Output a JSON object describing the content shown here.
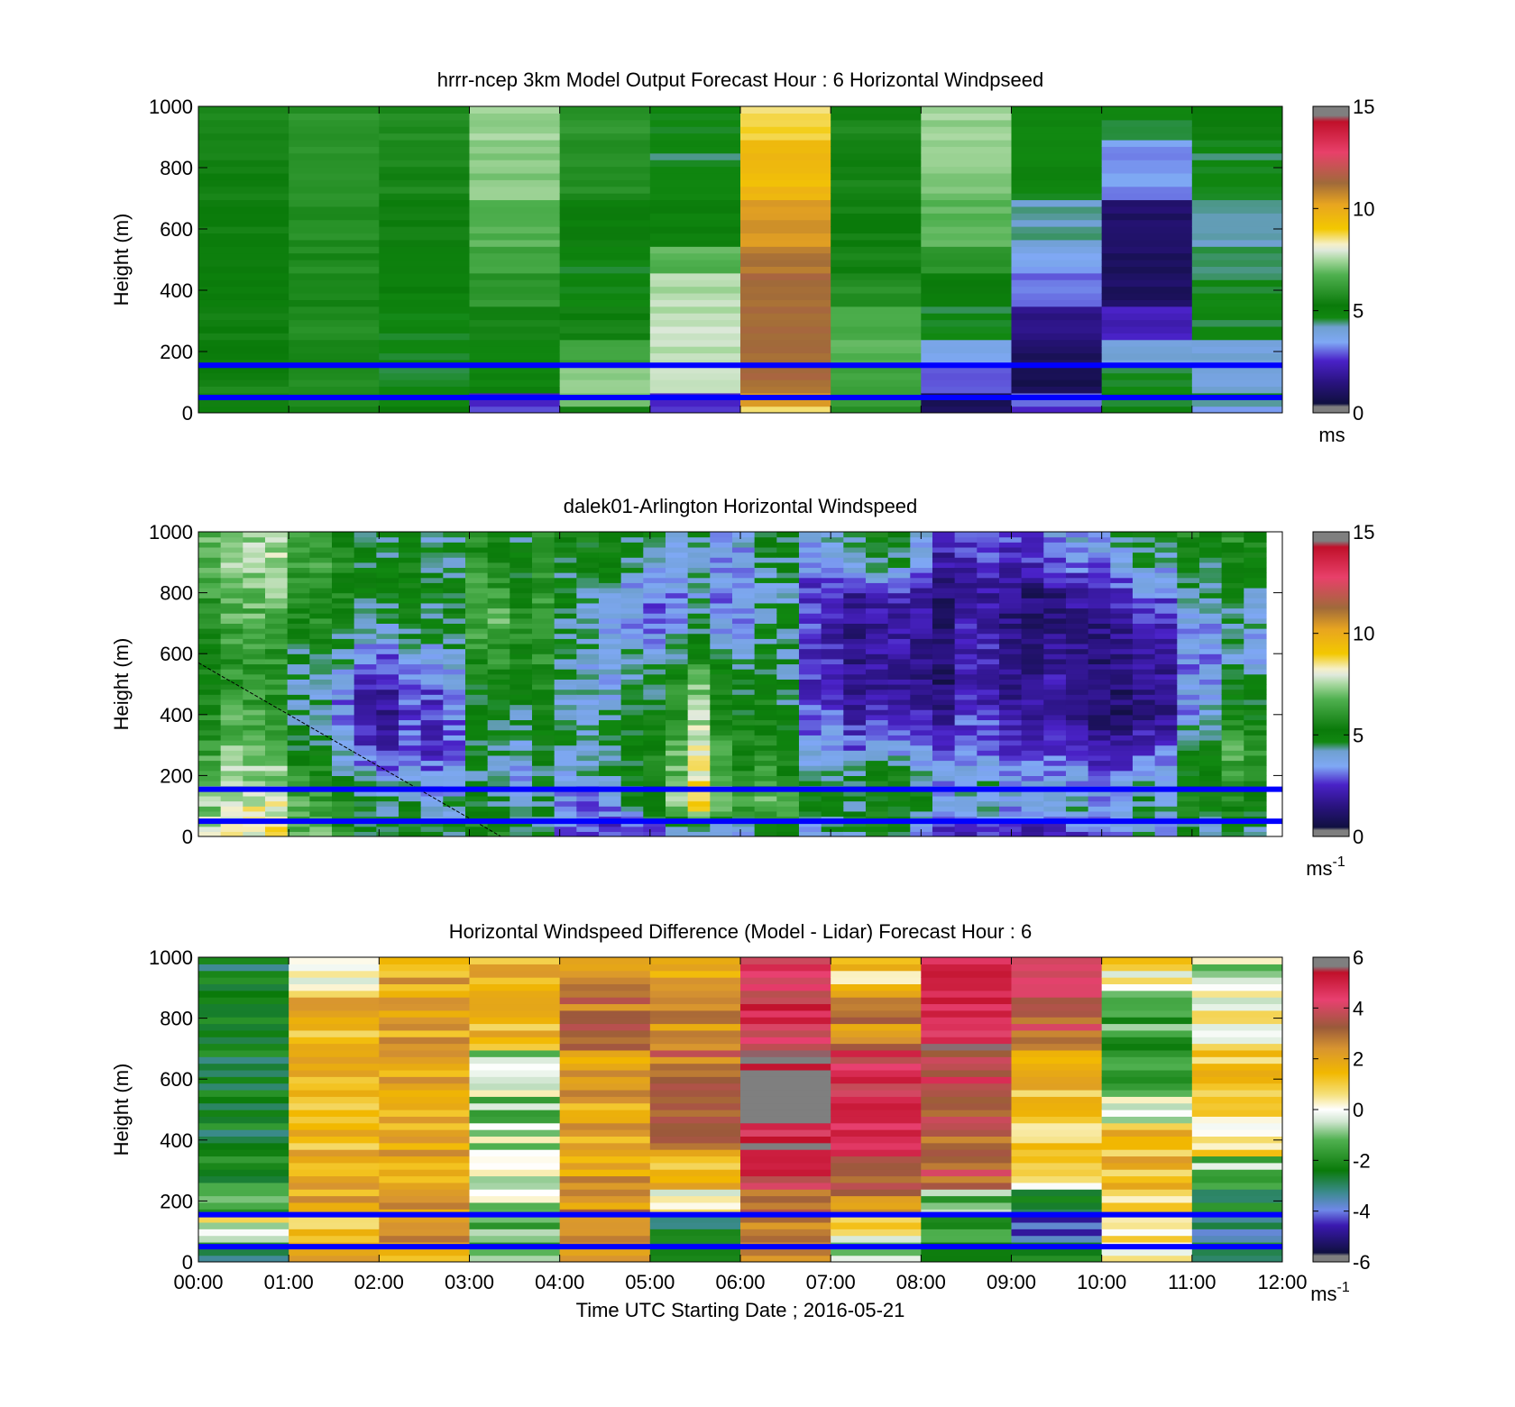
{
  "figure": {
    "xlabel": "Time UTC  Starting Date ; 2016-05-21",
    "xticks": [
      "00:00",
      "01:00",
      "02:00",
      "03:00",
      "04:00",
      "05:00",
      "06:00",
      "07:00",
      "08:00",
      "09:00",
      "10:00",
      "11:00",
      "12:00"
    ]
  },
  "colors": {
    "wind_scale": [
      [
        0.0,
        "#7f7f7f"
      ],
      [
        0.02,
        "#7f7f7f"
      ],
      [
        0.03,
        "#101040"
      ],
      [
        0.1,
        "#2a1380"
      ],
      [
        0.17,
        "#4a22c8"
      ],
      [
        0.23,
        "#7fa8f5"
      ],
      [
        0.28,
        "#6fa0d0"
      ],
      [
        0.31,
        "#118811"
      ],
      [
        0.35,
        "#0a7a0a"
      ],
      [
        0.45,
        "#4fb04f"
      ],
      [
        0.5,
        "#a8d8a0"
      ],
      [
        0.53,
        "#dfe9dc"
      ],
      [
        0.55,
        "#f5f0c8"
      ],
      [
        0.6,
        "#f3c800"
      ],
      [
        0.68,
        "#e8a520"
      ],
      [
        0.75,
        "#a06a3a"
      ],
      [
        0.85,
        "#e8406a"
      ],
      [
        0.95,
        "#c0102a"
      ],
      [
        0.97,
        "#7f7f7f"
      ],
      [
        1.0,
        "#7f7f7f"
      ]
    ],
    "diff_scale": [
      [
        0.0,
        "#7f7f7f"
      ],
      [
        0.02,
        "#7f7f7f"
      ],
      [
        0.03,
        "#101040"
      ],
      [
        0.12,
        "#3a18b0"
      ],
      [
        0.17,
        "#6f88e8"
      ],
      [
        0.23,
        "#3a8a8a"
      ],
      [
        0.3,
        "#0a7a0a"
      ],
      [
        0.4,
        "#4fb04f"
      ],
      [
        0.46,
        "#cfe5cf"
      ],
      [
        0.5,
        "#ffffff"
      ],
      [
        0.55,
        "#f5e07a"
      ],
      [
        0.62,
        "#f2b800"
      ],
      [
        0.7,
        "#d89530"
      ],
      [
        0.77,
        "#9a5a3a"
      ],
      [
        0.86,
        "#e84070"
      ],
      [
        0.95,
        "#c0102a"
      ],
      [
        0.97,
        "#7f7f7f"
      ],
      [
        1.0,
        "#7f7f7f"
      ]
    ],
    "guide_line": "#0000ff"
  },
  "chart_data": [
    {
      "type": "heatmap",
      "title": "hrrr-ncep 3km Model Output   Forecast Hour : 6 Horizontal Windpseed",
      "ylabel": "Height (m)",
      "ylim": [
        0,
        1000
      ],
      "yticks": [
        "0",
        "200",
        "400",
        "600",
        "800",
        "1000"
      ],
      "xlim": [
        0,
        12
      ],
      "colorbar": {
        "vmin": 0,
        "vmax": 15,
        "ticks": [
          "0",
          "5",
          "10",
          "15"
        ],
        "unit_base": "ms",
        "unit_exp": ""
      },
      "guide_lines": [
        50,
        155
      ],
      "blocks": {
        "x_edges": [
          0,
          1,
          2,
          3,
          4,
          5,
          6,
          7,
          8,
          9,
          10,
          11,
          12
        ],
        "y_edges": [
          0,
          30,
          60,
          150,
          250,
          350,
          450,
          550,
          700,
          900,
          1000
        ],
        "values": [
          [
            5.2,
            5.5,
            5.4,
            2.8,
            5.6,
            2.7,
            8.5,
            5.6,
            1.0,
            2.6,
            5.0,
            3.5
          ],
          [
            5.5,
            5.6,
            4.8,
            2.5,
            7.0,
            2.6,
            10.5,
            6.0,
            0.8,
            3.2,
            4.8,
            4.5
          ],
          [
            5.5,
            5.7,
            4.6,
            4.8,
            7.3,
            7.6,
            11.2,
            6.4,
            3.0,
            0.8,
            4.6,
            4.0
          ],
          [
            5.3,
            5.6,
            4.8,
            5.0,
            6.3,
            7.7,
            11.3,
            6.7,
            3.6,
            1.0,
            4.0,
            4.0
          ],
          [
            5.3,
            5.7,
            4.8,
            5.4,
            5.4,
            7.7,
            11.3,
            6.6,
            4.6,
            1.5,
            2.3,
            4.6
          ],
          [
            5.2,
            5.6,
            5.0,
            6.0,
            4.8,
            7.6,
            11.3,
            5.8,
            5.2,
            3.0,
            1.0,
            4.6
          ],
          [
            5.2,
            5.7,
            5.2,
            6.3,
            4.8,
            6.8,
            11.0,
            5.5,
            6.0,
            3.6,
            1.0,
            4.6
          ],
          [
            5.3,
            5.8,
            5.3,
            6.8,
            5.2,
            5.0,
            10.5,
            5.4,
            6.8,
            4.2,
            1.1,
            4.2
          ],
          [
            5.4,
            5.9,
            5.6,
            7.2,
            5.8,
            4.6,
            9.5,
            5.5,
            7.2,
            4.8,
            3.3,
            4.6
          ],
          [
            5.5,
            6.0,
            5.8,
            7.4,
            6.0,
            4.8,
            8.7,
            5.6,
            7.4,
            4.8,
            4.6,
            5.2
          ]
        ]
      }
    },
    {
      "type": "heatmap",
      "title": "dalek01-Arlington  Horizontal Windspeed",
      "ylabel": "Height (m)",
      "ylim": [
        0,
        1000
      ],
      "yticks": [
        "0",
        "200",
        "400",
        "600",
        "800",
        "1000"
      ],
      "xlim": [
        0,
        12
      ],
      "colorbar": {
        "vmin": 0,
        "vmax": 15,
        "ticks": [
          "0",
          "5",
          "10",
          "15"
        ],
        "unit_base": "ms",
        "unit_exp": "-1"
      },
      "guide_lines": [
        50,
        155
      ],
      "profiles": {
        "x_centers": [
          0.5,
          2.0,
          3.5,
          4.5,
          5.5,
          6.5,
          7.5,
          8.5,
          9.5,
          10.5,
          11.5
        ],
        "y_centers": [
          25,
          100,
          200,
          300,
          400,
          500,
          600,
          700,
          800,
          900,
          1000
        ],
        "values": [
          [
            8.5,
            5.0,
            5.0,
            2.0,
            4.5,
            4.5,
            5.0,
            2.0,
            2.0,
            4.0,
            5.0
          ],
          [
            8.0,
            5.0,
            4.5,
            2.5,
            9.0,
            6.0,
            5.0,
            3.5,
            3.5,
            4.5,
            5.5
          ],
          [
            7.5,
            4.0,
            4.0,
            3.5,
            8.5,
            5.0,
            5.0,
            3.5,
            3.0,
            3.5,
            6.5
          ],
          [
            7.0,
            2.5,
            4.5,
            4.0,
            8.0,
            4.5,
            3.0,
            2.5,
            2.0,
            2.5,
            6.5
          ],
          [
            6.5,
            2.0,
            5.0,
            3.5,
            7.5,
            4.5,
            2.0,
            2.0,
            1.5,
            1.0,
            5.5
          ],
          [
            6.0,
            2.5,
            5.5,
            3.0,
            7.0,
            4.0,
            1.5,
            1.5,
            1.5,
            1.5,
            5.0
          ],
          [
            6.0,
            3.5,
            6.0,
            3.5,
            5.5,
            4.0,
            1.5,
            1.8,
            1.2,
            2.0,
            4.0
          ],
          [
            6.5,
            4.5,
            6.5,
            3.0,
            4.5,
            4.0,
            1.5,
            1.5,
            1.0,
            2.5,
            4.5
          ],
          [
            7.0,
            5.0,
            6.0,
            3.5,
            4.0,
            3.5,
            2.0,
            1.5,
            1.0,
            3.0,
            5.0
          ],
          [
            7.5,
            5.0,
            5.5,
            4.5,
            4.5,
            4.0,
            4.5,
            1.8,
            2.5,
            4.5,
            5.5
          ],
          [
            7.5,
            5.0,
            5.0,
            5.0,
            4.5,
            4.5,
            5.0,
            2.0,
            3.0,
            5.0,
            6.0
          ]
        ]
      },
      "overlay_line": {
        "x": [
          0,
          3.35
        ],
        "y": [
          570,
          0
        ]
      }
    },
    {
      "type": "heatmap",
      "title": "Horizontal Windspeed Difference (Model - Lidar) Forecast Hour : 6",
      "ylabel": "Height (m)",
      "ylim": [
        0,
        1000
      ],
      "yticks": [
        "0",
        "200",
        "400",
        "600",
        "800",
        "1000"
      ],
      "xlim": [
        0,
        12
      ],
      "colorbar": {
        "vmin": -6,
        "vmax": 6,
        "ticks": [
          "-6",
          "-4",
          "-2",
          "0",
          "2",
          "4",
          "6"
        ],
        "unit_base": "ms",
        "unit_exp": "-1"
      },
      "guide_lines": [
        50,
        155
      ],
      "blocks": {
        "x_edges": [
          0,
          1,
          2,
          3,
          4,
          5,
          6,
          7,
          8,
          9,
          10,
          11,
          12
        ],
        "y_edges": [
          0,
          60,
          150,
          250,
          350,
          450,
          550,
          700,
          900,
          1000
        ],
        "values": [
          [
            -2.5,
            2.0,
            2.0,
            -1.5,
            2.5,
            -2.0,
            2.0,
            -1.0,
            -2.5,
            -2.0,
            -0.3,
            -2.5
          ],
          [
            0.0,
            1.5,
            2.0,
            -1.5,
            2.5,
            -2.5,
            3.0,
            0.5,
            -2.0,
            -4.5,
            0.5,
            -3.5
          ],
          [
            -1.5,
            2.0,
            2.0,
            -0.5,
            2.5,
            0.0,
            3.5,
            2.5,
            -1.0,
            -2.5,
            1.0,
            -2.5
          ],
          [
            -2.0,
            2.0,
            2.0,
            -0.5,
            2.0,
            1.5,
            4.5,
            3.5,
            3.5,
            0.5,
            1.5,
            -1.0
          ],
          [
            -2.5,
            1.5,
            2.0,
            -0.5,
            2.0,
            2.5,
            5.0,
            4.5,
            3.0,
            1.0,
            1.5,
            0.5
          ],
          [
            -2.5,
            1.5,
            2.0,
            -1.0,
            2.0,
            3.0,
            6.0,
            4.5,
            3.5,
            1.5,
            0.0,
            1.0
          ],
          [
            -2.5,
            1.5,
            2.0,
            -0.5,
            2.0,
            3.0,
            6.0,
            4.5,
            4.0,
            1.5,
            -2.0,
            1.0
          ],
          [
            -2.5,
            1.5,
            2.0,
            1.5,
            3.0,
            2.5,
            4.5,
            2.5,
            5.0,
            3.5,
            -1.5,
            0.0
          ],
          [
            -2.5,
            0.0,
            1.8,
            1.5,
            2.5,
            1.8,
            4.5,
            1.0,
            4.5,
            3.5,
            0.5,
            -0.5
          ]
        ]
      }
    }
  ]
}
